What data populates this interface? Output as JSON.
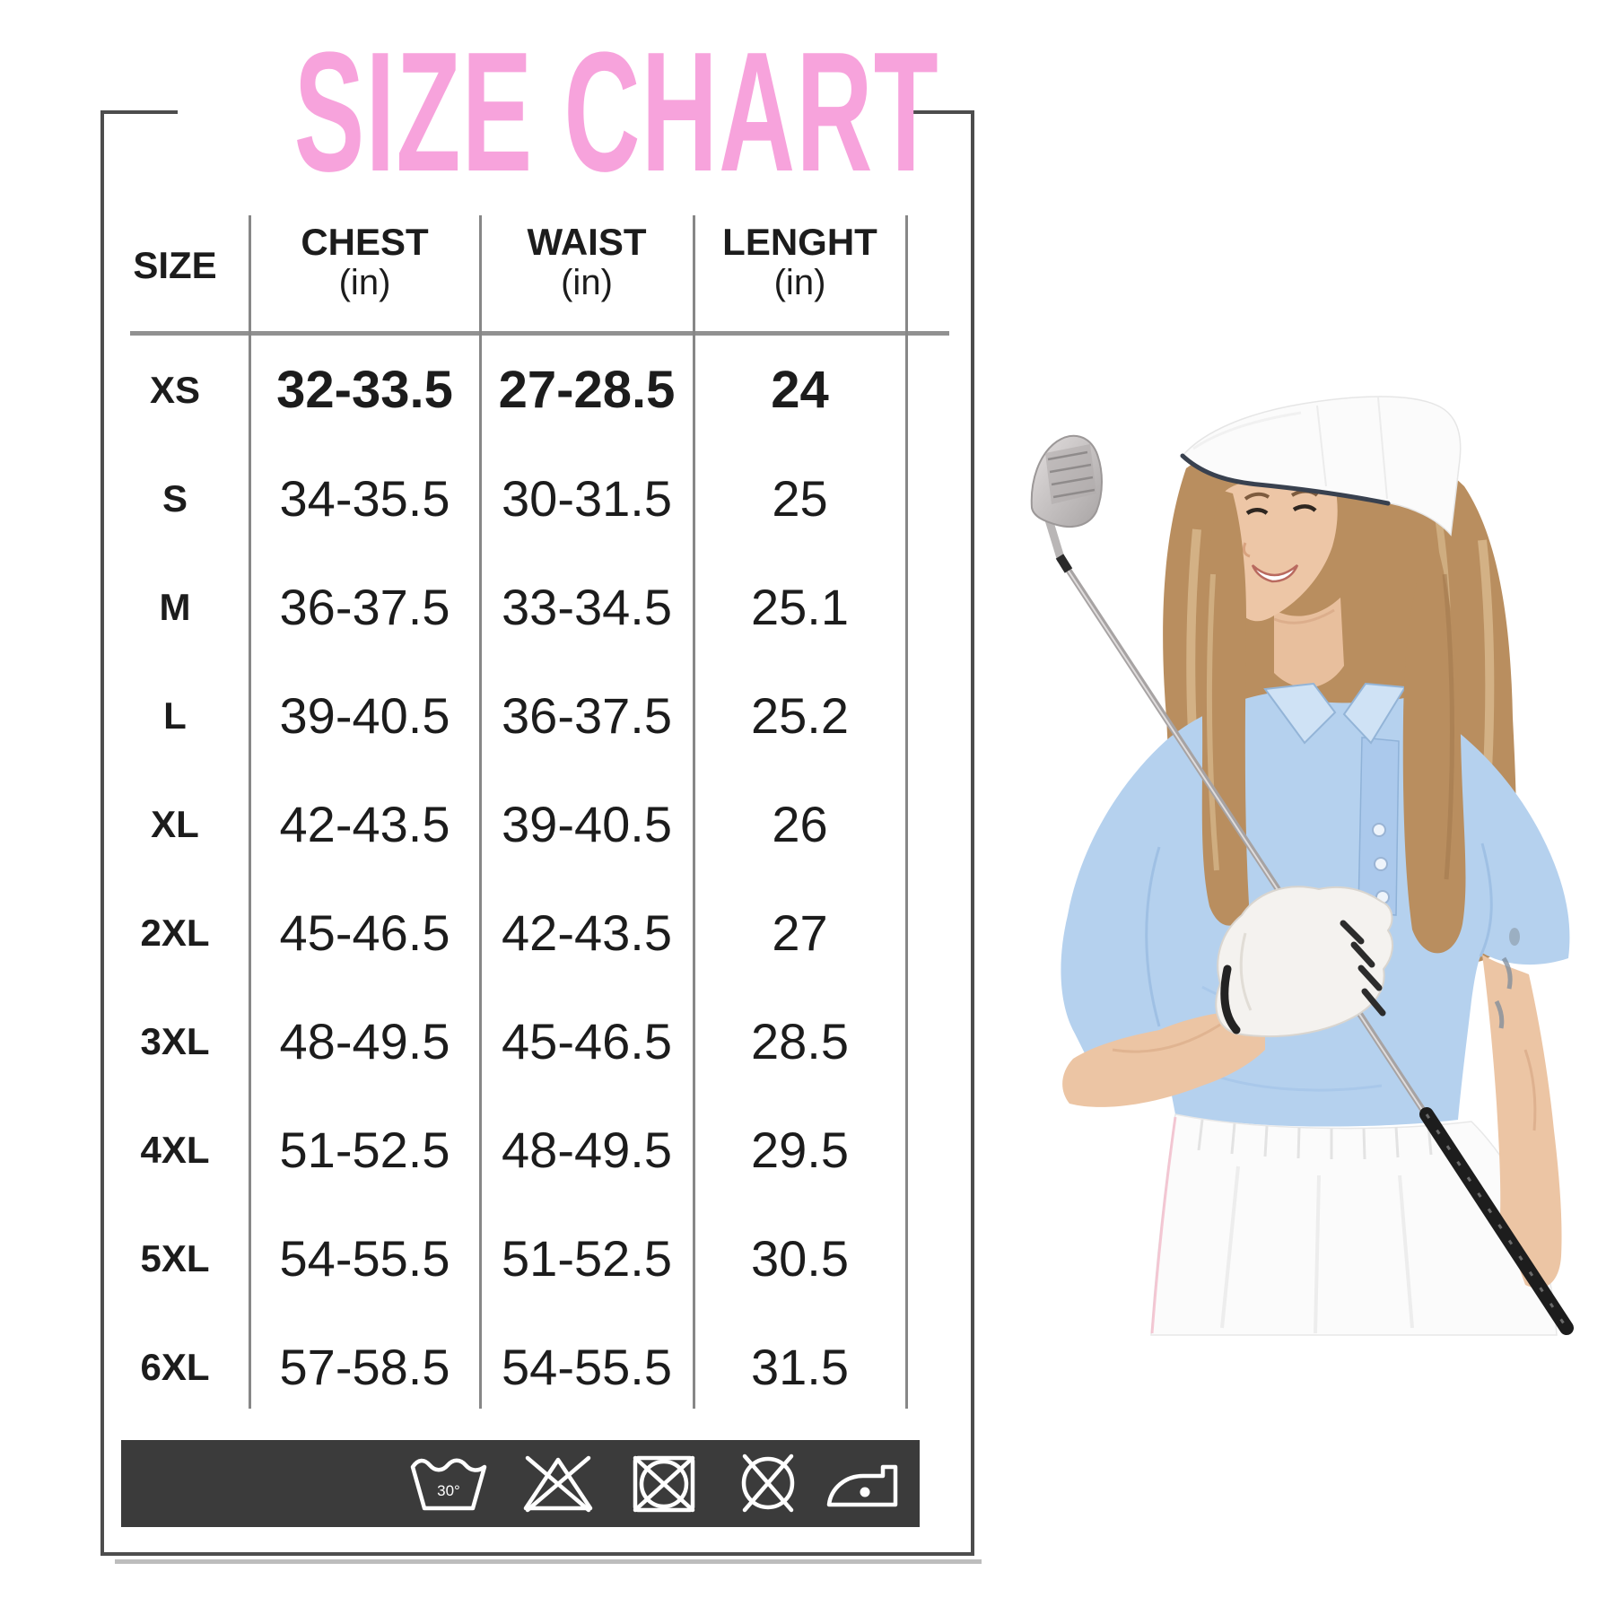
{
  "size_chart": {
    "title": "SIZE CHART",
    "title_color": "#f7a3dc",
    "header": {
      "size": "SIZE",
      "chest": "CHEST",
      "waist": "WAIST",
      "length": "LENGHT",
      "unit": "(in)"
    },
    "rows": [
      {
        "size": "XS",
        "chest": "32-33.5",
        "waist": "27-28.5",
        "length": "24",
        "emphasis": true
      },
      {
        "size": "S",
        "chest": "34-35.5",
        "waist": "30-31.5",
        "length": "25"
      },
      {
        "size": "M",
        "chest": "36-37.5",
        "waist": "33-34.5",
        "length": "25.1"
      },
      {
        "size": "L",
        "chest": "39-40.5",
        "waist": "36-37.5",
        "length": "25.2"
      },
      {
        "size": "XL",
        "chest": "42-43.5",
        "waist": "39-40.5",
        "length": "26"
      },
      {
        "size": "2XL",
        "chest": "45-46.5",
        "waist": "42-43.5",
        "length": "27"
      },
      {
        "size": "3XL",
        "chest": "48-49.5",
        "waist": "45-46.5",
        "length": "28.5"
      },
      {
        "size": "4XL",
        "chest": "51-52.5",
        "waist": "48-49.5",
        "length": "29.5"
      },
      {
        "size": "5XL",
        "chest": "54-55.5",
        "waist": "51-52.5",
        "length": "30.5"
      },
      {
        "size": "6XL",
        "chest": "57-58.5",
        "waist": "54-55.5",
        "length": "31.5"
      }
    ],
    "care": {
      "bar_color": "#3b3b3b",
      "wash_temp": "30°",
      "symbols": [
        "wash-30-icon",
        "do-not-bleach-icon",
        "do-not-tumble-dry-icon",
        "do-not-dry-clean-icon",
        "iron-low-icon"
      ]
    }
  },
  "photo": {
    "alt": "Female golfer wearing white visor and light blue polo holding a golf club",
    "colors": {
      "polo": "#b5d1ee",
      "skin": "#ecc5a4",
      "hair": "#b98e5f",
      "visor": "#fbfbfb",
      "glove": "#f4f2ef",
      "skirt": "#fbfbfb",
      "grip": "#1d1d1d"
    }
  }
}
